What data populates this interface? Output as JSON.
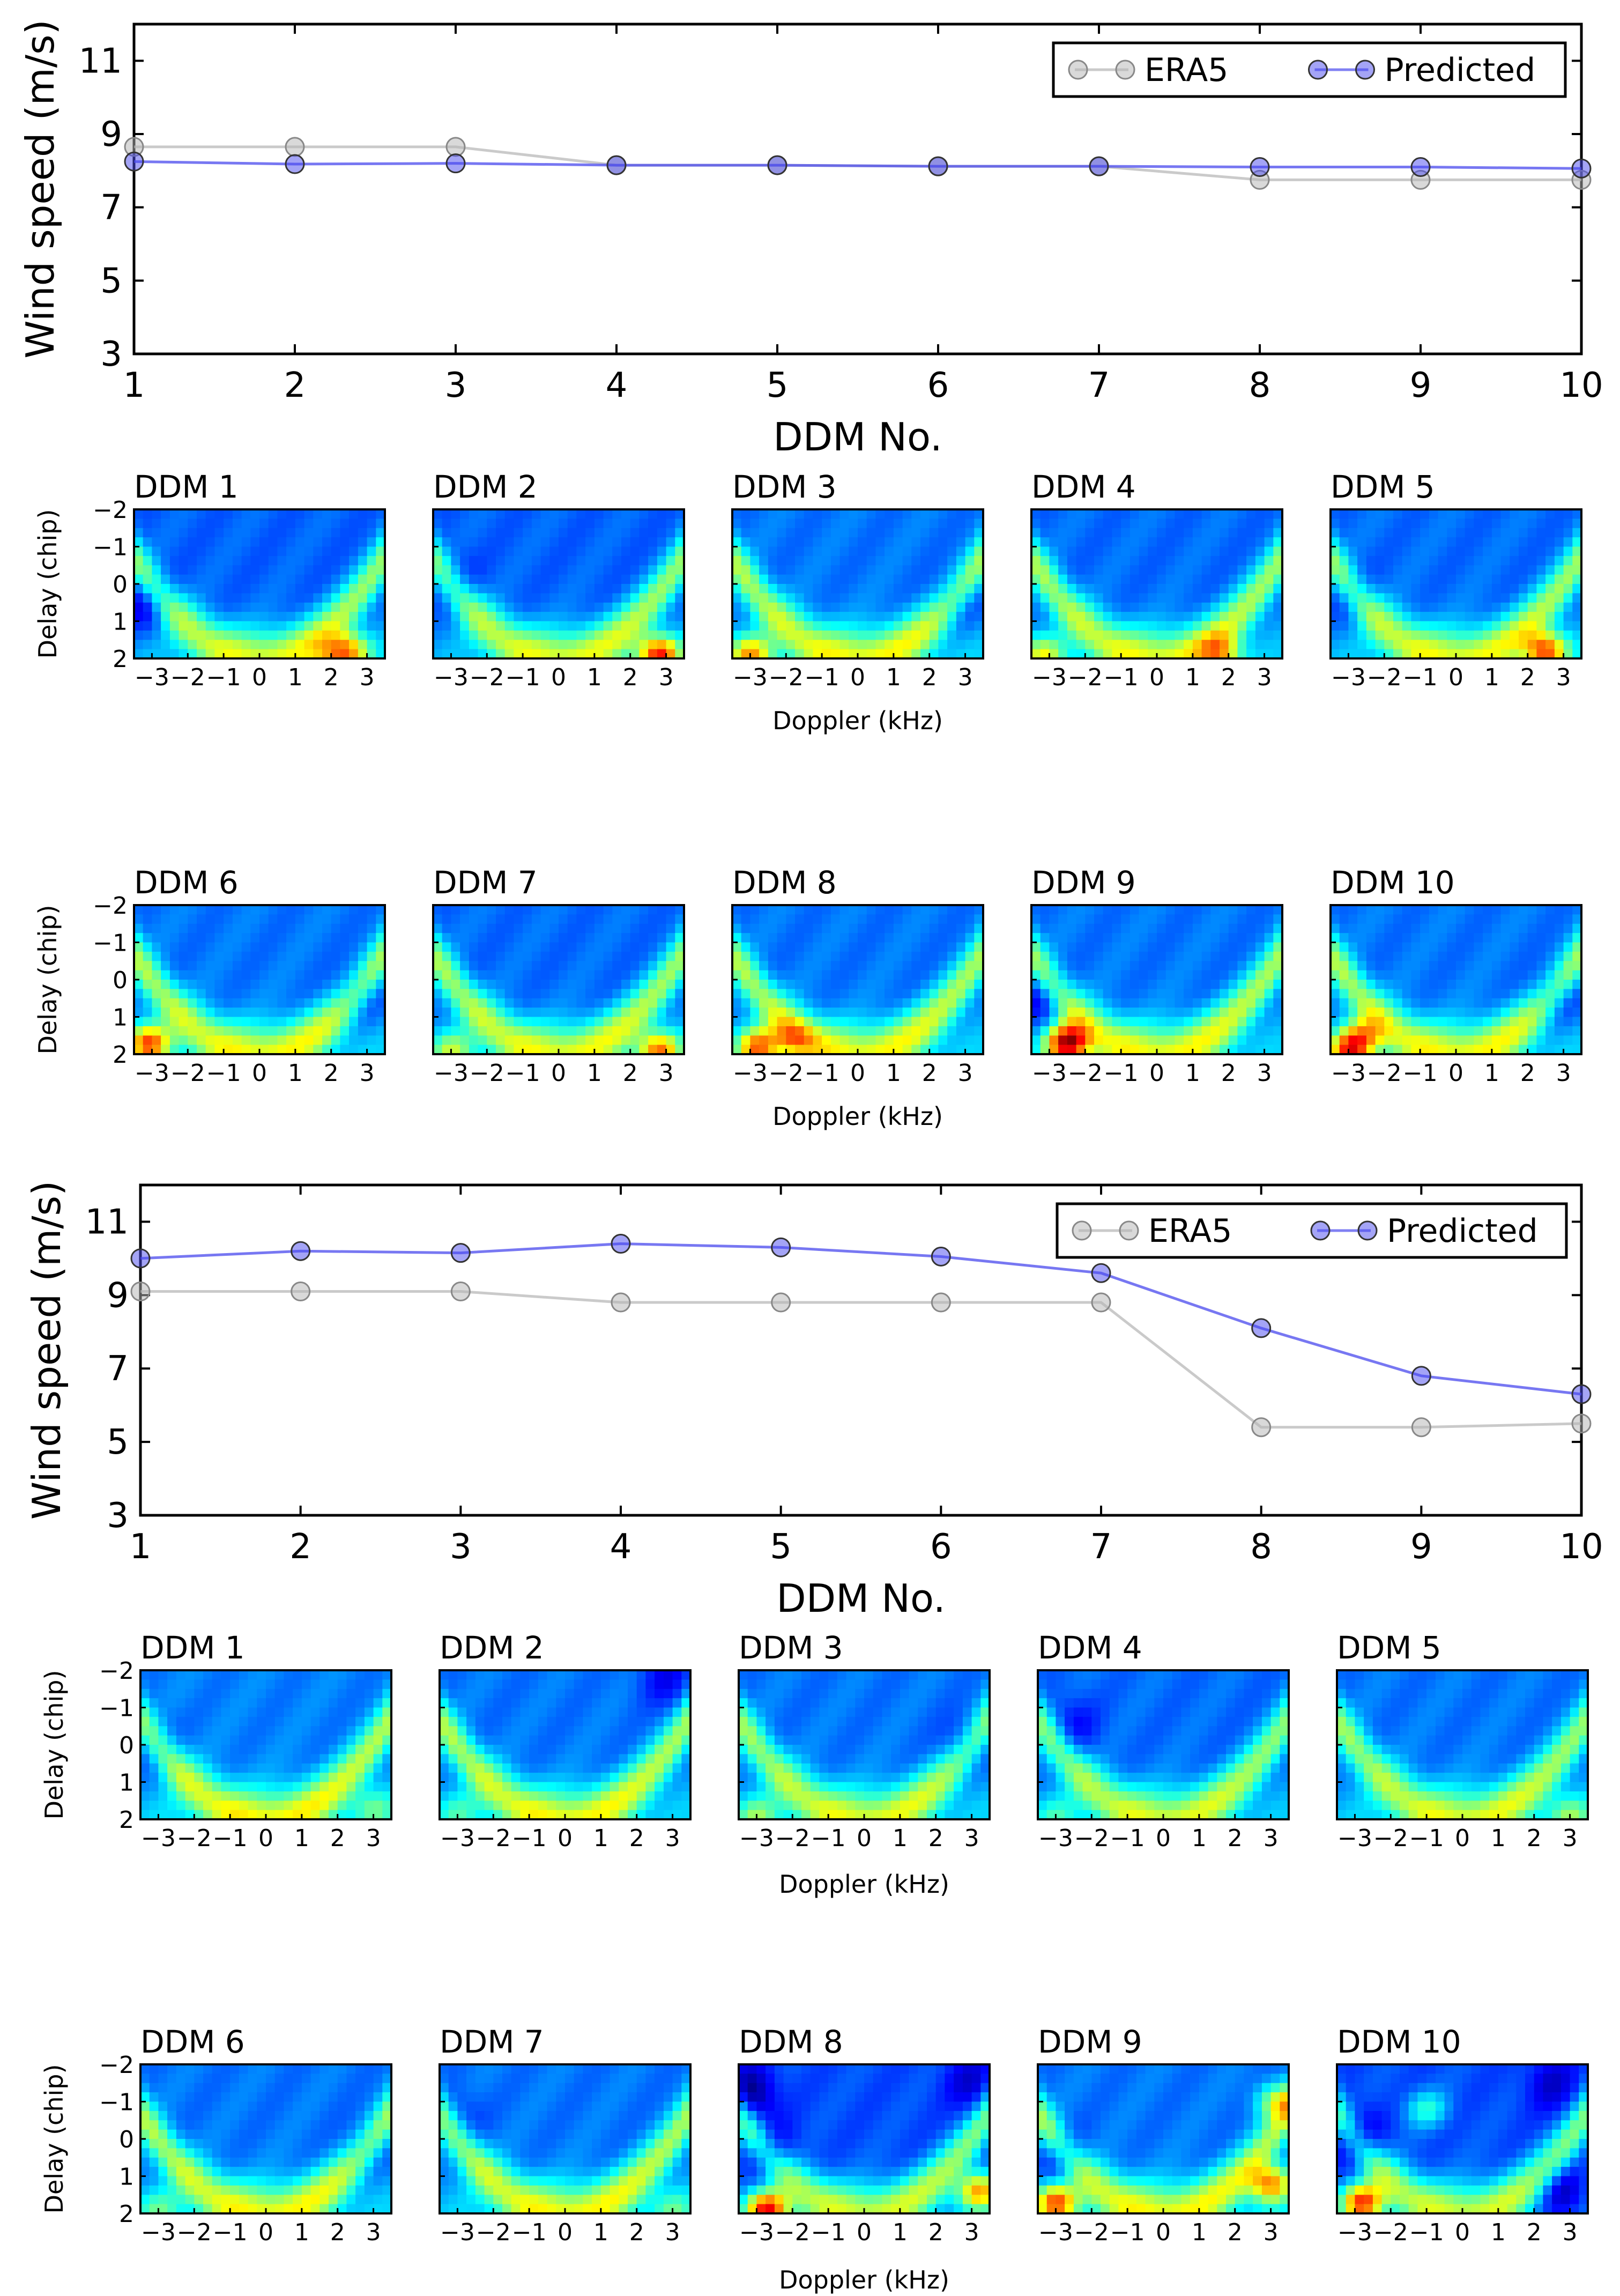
{
  "chart_data": [
    {
      "type": "line",
      "title": "",
      "xlabel": "DDM No.",
      "ylabel": "Wind speed (m/s)",
      "xlim": [
        1,
        10
      ],
      "ylim": [
        3,
        12
      ],
      "xticks": [
        "1",
        "2",
        "3",
        "4",
        "5",
        "6",
        "7",
        "8",
        "9",
        "10"
      ],
      "yticks": [
        "3",
        "5",
        "7",
        "9",
        "11"
      ],
      "x": [
        1,
        2,
        3,
        4,
        5,
        6,
        7,
        8,
        9,
        10
      ],
      "legend_position": "top-right",
      "series": [
        {
          "name": "ERA5",
          "color": "#b4b4b4",
          "values": [
            8.65,
            8.65,
            8.65,
            8.15,
            8.15,
            8.12,
            8.12,
            7.75,
            7.75,
            7.75
          ]
        },
        {
          "name": "Predicted",
          "color": "#4a4aee",
          "values": [
            8.25,
            8.18,
            8.2,
            8.15,
            8.15,
            8.12,
            8.12,
            8.1,
            8.1,
            8.06
          ]
        }
      ]
    },
    {
      "type": "heatmap",
      "colormap": "jet",
      "xlabel": "Doppler (kHz)",
      "ylabel": "Delay (chip)",
      "xticks": [
        "−3",
        "−2",
        "−1",
        "0",
        "1",
        "2",
        "3"
      ],
      "yticks": [
        "−2",
        "−1",
        "0",
        "1",
        "2"
      ],
      "panels": [
        {
          "title": "DDM 1",
          "base": 0.22,
          "arc": 0.3,
          "hot": [
            [
              2.5,
              1.8,
              0.38
            ],
            [
              2.0,
              2.0,
              0.2
            ]
          ],
          "dark": [
            [
              -3.2,
              0.5,
              0.15
            ]
          ]
        },
        {
          "title": "DDM 2",
          "base": 0.22,
          "arc": 0.3,
          "hot": [
            [
              2.8,
              1.9,
              0.55
            ]
          ],
          "dark": [
            [
              -3.0,
              0.0,
              0.1
            ]
          ]
        },
        {
          "title": "DDM 3",
          "base": 0.24,
          "arc": 0.3,
          "hot": [
            [
              -3.0,
              1.9,
              0.4
            ]
          ],
          "dark": [
            [
              2.8,
              0.5,
              0.1
            ]
          ]
        },
        {
          "title": "DDM 4",
          "base": 0.23,
          "arc": 0.3,
          "hot": [
            [
              -3.2,
              1.9,
              0.3
            ],
            [
              1.8,
              1.9,
              0.3
            ]
          ],
          "dark": []
        },
        {
          "title": "DDM 5",
          "base": 0.23,
          "arc": 0.3,
          "hot": [
            [
              2.5,
              1.8,
              0.5
            ]
          ],
          "dark": [
            [
              -3.0,
              0.3,
              0.1
            ]
          ]
        },
        {
          "title": "DDM 6",
          "base": 0.24,
          "arc": 0.3,
          "hot": [
            [
              -3.1,
              1.7,
              0.5
            ]
          ],
          "dark": [
            [
              2.8,
              0.5,
              0.1
            ]
          ]
        },
        {
          "title": "DDM 7",
          "base": 0.23,
          "arc": 0.3,
          "hot": [
            [
              2.8,
              1.9,
              0.45
            ],
            [
              -3.0,
              1.9,
              0.25
            ]
          ],
          "dark": []
        },
        {
          "title": "DDM 8",
          "base": 0.24,
          "arc": 0.3,
          "hot": [
            [
              -2.8,
              1.8,
              0.45
            ],
            [
              -1.8,
              1.6,
              0.25
            ]
          ],
          "dark": []
        },
        {
          "title": "DDM 9",
          "base": 0.24,
          "arc": 0.3,
          "hot": [
            [
              -2.5,
              1.7,
              0.65
            ]
          ],
          "dark": [
            [
              -3.3,
              0.5,
              0.15
            ]
          ]
        },
        {
          "title": "DDM 10",
          "base": 0.24,
          "arc": 0.3,
          "hot": [
            [
              -3.0,
              1.9,
              0.45
            ],
            [
              -2.6,
              1.5,
              0.3
            ]
          ],
          "dark": [
            [
              2.8,
              0.5,
              0.12
            ]
          ]
        }
      ]
    },
    {
      "type": "line",
      "title": "",
      "xlabel": "DDM No.",
      "ylabel": "Wind speed (m/s)",
      "xlim": [
        1,
        10
      ],
      "ylim": [
        3,
        12
      ],
      "xticks": [
        "1",
        "2",
        "3",
        "4",
        "5",
        "6",
        "7",
        "8",
        "9",
        "10"
      ],
      "yticks": [
        "3",
        "5",
        "7",
        "9",
        "11"
      ],
      "x": [
        1,
        2,
        3,
        4,
        5,
        6,
        7,
        8,
        9,
        10
      ],
      "legend_position": "top-right",
      "series": [
        {
          "name": "ERA5",
          "color": "#b4b4b4",
          "values": [
            9.1,
            9.1,
            9.1,
            8.8,
            8.8,
            8.8,
            8.8,
            5.4,
            5.4,
            5.5
          ]
        },
        {
          "name": "Predicted",
          "color": "#4a4aee",
          "values": [
            10.0,
            10.2,
            10.15,
            10.4,
            10.3,
            10.05,
            9.6,
            8.1,
            6.8,
            6.3
          ]
        }
      ]
    },
    {
      "type": "heatmap",
      "colormap": "jet",
      "xlabel": "Doppler (kHz)",
      "ylabel": "Delay (chip)",
      "xticks": [
        "−3",
        "−2",
        "−1",
        "0",
        "1",
        "2",
        "3"
      ],
      "yticks": [
        "−2",
        "−1",
        "0",
        "1",
        "2"
      ],
      "panels": [
        {
          "title": "DDM 1",
          "base": 0.25,
          "arc": 0.3,
          "hot": [
            [
              3.0,
              1.7,
              0.15
            ]
          ],
          "dark": [
            [
              -3.2,
              0.0,
              0.1
            ]
          ]
        },
        {
          "title": "DDM 2",
          "base": 0.24,
          "arc": 0.3,
          "hot": [
            [
              -3.0,
              1.8,
              0.12
            ]
          ],
          "dark": [
            [
              2.8,
              -1.8,
              0.12
            ]
          ]
        },
        {
          "title": "DDM 3",
          "base": 0.24,
          "arc": 0.28,
          "hot": [
            [
              -3.0,
              1.9,
              0.2
            ]
          ],
          "dark": [
            [
              2.8,
              0.0,
              0.1
            ]
          ]
        },
        {
          "title": "DDM 4",
          "base": 0.23,
          "arc": 0.28,
          "hot": [
            [
              -3.0,
              1.9,
              0.12
            ]
          ],
          "dark": [
            [
              -2.5,
              -0.5,
              0.1
            ]
          ]
        },
        {
          "title": "DDM 5",
          "base": 0.24,
          "arc": 0.28,
          "hot": [
            [
              3.0,
              1.9,
              0.2
            ]
          ],
          "dark": []
        },
        {
          "title": "DDM 6",
          "base": 0.24,
          "arc": 0.3,
          "hot": [
            [
              -3.0,
              1.9,
              0.15
            ]
          ],
          "dark": [
            [
              2.8,
              0.3,
              0.08
            ]
          ]
        },
        {
          "title": "DDM 7",
          "base": 0.24,
          "arc": 0.3,
          "hot": [
            [
              3.0,
              1.9,
              0.15
            ]
          ],
          "dark": [
            [
              -3.0,
              -0.5,
              0.08
            ]
          ]
        },
        {
          "title": "DDM 8",
          "base": 0.2,
          "arc": 0.3,
          "hot": [
            [
              -2.7,
              1.9,
              0.6
            ],
            [
              3.2,
              1.4,
              0.45
            ]
          ],
          "dark": [
            [
              -3.2,
              -1.2,
              0.2
            ],
            [
              -2.6,
              0.4,
              0.15
            ],
            [
              3.0,
              -1.5,
              0.12
            ]
          ]
        },
        {
          "title": "DDM 9",
          "base": 0.24,
          "arc": 0.3,
          "hot": [
            [
              -3.0,
              1.7,
              0.5
            ],
            [
              3.0,
              1.2,
              0.45
            ],
            [
              3.2,
              -1.0,
              0.3
            ]
          ],
          "dark": [
            [
              -2.8,
              0.5,
              0.15
            ]
          ]
        },
        {
          "title": "DDM 10",
          "base": 0.2,
          "arc": 0.3,
          "hot": [
            [
              -2.8,
              1.7,
              0.55
            ],
            [
              -1.0,
              -0.8,
              0.2
            ]
          ],
          "dark": [
            [
              -3.0,
              0.0,
              0.2
            ],
            [
              2.8,
              1.5,
              0.2
            ],
            [
              2.5,
              -1.5,
              0.12
            ]
          ]
        }
      ]
    }
  ]
}
